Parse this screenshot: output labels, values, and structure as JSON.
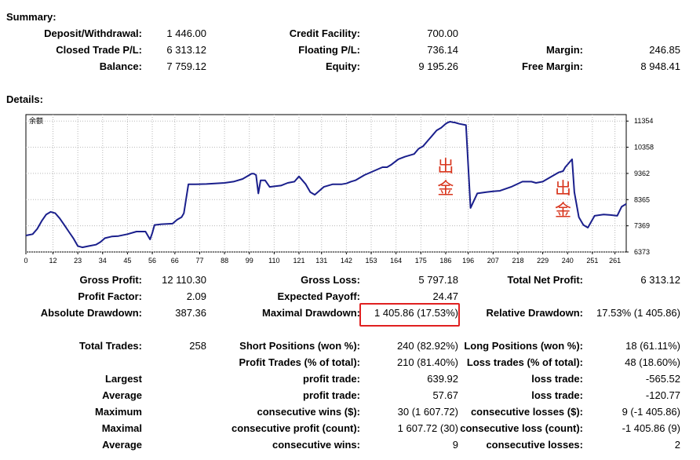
{
  "summary": {
    "title": "Summary:",
    "deposit_label": "Deposit/Withdrawal:",
    "deposit_value": "1 446.00",
    "closed_label": "Closed Trade P/L:",
    "closed_value": "6 313.12",
    "balance_label": "Balance:",
    "balance_value": "7 759.12",
    "credit_label": "Credit Facility:",
    "credit_value": "700.00",
    "floating_label": "Floating P/L:",
    "floating_value": "736.14",
    "equity_label": "Equity:",
    "equity_value": "9 195.26",
    "margin_label": "Margin:",
    "margin_value": "246.85",
    "free_margin_label": "Free Margin:",
    "free_margin_value": "8 948.41"
  },
  "details": {
    "title": "Details:",
    "gross_profit_label": "Gross Profit:",
    "gross_profit_value": "12 110.30",
    "gross_loss_label": "Gross Loss:",
    "gross_loss_value": "5 797.18",
    "total_net_label": "Total Net Profit:",
    "total_net_value": "6 313.12",
    "profit_factor_label": "Profit Factor:",
    "profit_factor_value": "2.09",
    "expected_payoff_label": "Expected Payoff:",
    "expected_payoff_value": "24.47",
    "abs_dd_label": "Absolute Drawdown:",
    "abs_dd_value": "387.36",
    "max_dd_label": "Maximal Drawdown:",
    "max_dd_value": "1 405.86 (17.53%)",
    "rel_dd_label": "Relative Drawdown:",
    "rel_dd_value": "17.53% (1 405.86)",
    "total_trades_label": "Total Trades:",
    "total_trades_value": "258",
    "short_label": "Short Positions (won %):",
    "short_value": "240 (82.92%)",
    "long_label": "Long Positions (won %):",
    "long_value": "18 (61.11%)",
    "profit_trades_label": "Profit Trades (% of total):",
    "profit_trades_value": "210 (81.40%)",
    "loss_trades_label": "Loss trades (% of total):",
    "loss_trades_value": "48 (18.60%)",
    "largest_label": "Largest",
    "largest_profit_label": "profit trade:",
    "largest_profit_value": "639.92",
    "largest_loss_label": "loss trade:",
    "largest_loss_value": "-565.52",
    "average_label": "Average",
    "average_profit_label": "profit trade:",
    "average_profit_value": "57.67",
    "average_loss_label": "loss trade:",
    "average_loss_value": "-120.77",
    "maximum_label": "Maximum",
    "max_wins_label": "consecutive wins ($):",
    "max_wins_value": "30 (1 607.72)",
    "max_losses_label": "consecutive losses ($):",
    "max_losses_value": "9 (-1 405.86)",
    "maximal_label": "Maximal",
    "maximal_profit_label": "consecutive profit (count):",
    "maximal_profit_value": "1 607.72 (30)",
    "maximal_loss_label": "consecutive loss (count):",
    "maximal_loss_value": "-1 405.86 (9)",
    "avg2_label": "Average",
    "avg_wins_label": "consecutive wins:",
    "avg_wins_value": "9",
    "avg_losses_label": "consecutive losses:",
    "avg_losses_value": "2"
  },
  "chart_data": {
    "type": "line",
    "corner_label": "余额",
    "line_color": "#1a1f8c",
    "annotation_color": "#d8351d",
    "annotations": [
      {
        "text": "出金",
        "x": 186
      },
      {
        "text": "出金",
        "x": 238
      }
    ],
    "xlim": [
      0,
      266
    ],
    "ylim": [
      6373,
      11600
    ],
    "x_ticks": [
      "0",
      "12",
      "23",
      "34",
      "45",
      "56",
      "66",
      "77",
      "88",
      "99",
      "110",
      "121",
      "131",
      "142",
      "153",
      "164",
      "175",
      "186",
      "196",
      "207",
      "218",
      "229",
      "240",
      "251",
      "261"
    ],
    "y_ticks": [
      "11354",
      "10358",
      "9362",
      "8365",
      "7369",
      "6373"
    ],
    "series": [
      {
        "x": [
          0,
          3,
          5,
          7,
          9,
          11,
          13,
          15,
          17,
          19,
          21,
          23,
          25,
          28,
          31,
          33,
          35,
          38,
          41,
          45,
          49,
          53,
          55,
          56,
          57,
          60,
          65,
          67,
          69,
          70,
          72,
          75,
          80,
          88,
          92,
          96,
          99,
          100,
          101,
          102,
          103,
          104,
          106,
          108,
          110,
          113,
          116,
          119,
          121,
          124,
          126,
          128,
          132,
          136,
          140,
          142,
          144,
          146,
          150,
          154,
          158,
          160,
          162,
          165,
          168,
          172,
          174,
          176,
          178,
          180,
          182,
          184,
          186,
          187,
          188,
          189,
          190,
          192,
          195,
          197,
          200,
          204,
          207,
          210,
          215,
          220,
          224,
          226,
          229,
          232,
          236,
          238,
          239,
          240,
          242,
          243,
          245,
          247,
          249,
          252,
          256,
          259,
          262,
          264,
          266
        ],
        "y": [
          7000,
          7050,
          7250,
          7550,
          7800,
          7900,
          7850,
          7650,
          7400,
          7150,
          6900,
          6600,
          6550,
          6600,
          6650,
          6750,
          6900,
          6960,
          6980,
          7050,
          7150,
          7150,
          6850,
          7100,
          7400,
          7430,
          7450,
          7600,
          7700,
          7850,
          8950,
          8950,
          8960,
          9000,
          9050,
          9150,
          9300,
          9350,
          9350,
          9300,
          8600,
          9100,
          9100,
          8850,
          8870,
          8900,
          9000,
          9050,
          9250,
          8950,
          8650,
          8550,
          8850,
          8950,
          8950,
          8980,
          9050,
          9100,
          9300,
          9450,
          9600,
          9600,
          9700,
          9900,
          10000,
          10100,
          10300,
          10400,
          10600,
          10800,
          11000,
          11100,
          11250,
          11300,
          11330,
          11310,
          11300,
          11250,
          11200,
          8050,
          8600,
          8650,
          8680,
          8700,
          8850,
          9050,
          9050,
          9000,
          9050,
          9200,
          9400,
          9450,
          9600,
          9700,
          9900,
          8650,
          7700,
          7400,
          7300,
          7750,
          7800,
          7780,
          7750,
          8100,
          8200
        ]
      }
    ]
  }
}
